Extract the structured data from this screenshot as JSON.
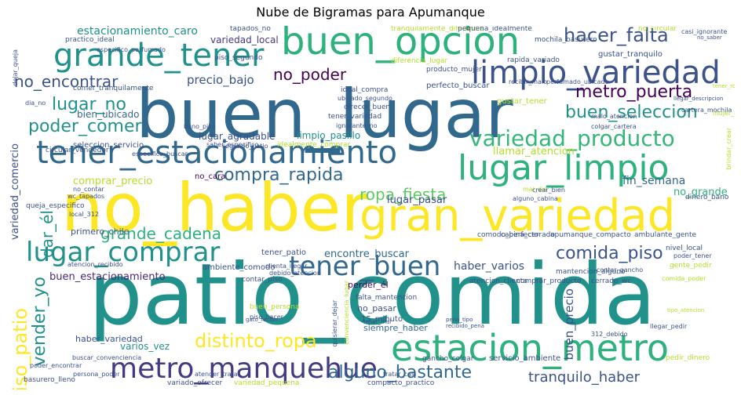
{
  "title": "Nube de Bigramas para Apumanque",
  "words": [
    {
      "text": "patio_comida",
      "color": "#21918c"
    },
    {
      "text": "buen_lugar",
      "color": "#31688e"
    },
    {
      "text": "no_haber",
      "color": "#fde725"
    },
    {
      "text": "gran_variedad",
      "color": "#fde725"
    },
    {
      "text": "buen_opcion",
      "color": "#2db27d"
    },
    {
      "text": "tener_estacionamiento",
      "color": "#31688e"
    },
    {
      "text": "estacion_metro",
      "color": "#2db27d"
    },
    {
      "text": "lugar_limpio",
      "color": "#2db27d"
    },
    {
      "text": "limpio_variedad",
      "color": "#3b528b"
    },
    {
      "text": "grande_tener",
      "color": "#21918c"
    },
    {
      "text": "metro_manquehue",
      "color": "#443a83"
    },
    {
      "text": "tener_buen",
      "color": "#31688e"
    },
    {
      "text": "lugar_comprar",
      "color": "#21918c"
    },
    {
      "text": "variedad_producto",
      "color": "#35b779"
    },
    {
      "text": "hacer_falta",
      "color": "#3b528b"
    },
    {
      "text": "buen_seleccion",
      "color": "#21918c"
    },
    {
      "text": "compra_rapida",
      "color": "#31688e"
    },
    {
      "text": "comida_piso",
      "color": "#3b528b"
    },
    {
      "text": "distinto_ropa",
      "color": "#fde725"
    },
    {
      "text": "metro_puerta",
      "color": "#440154"
    },
    {
      "text": "alguno_bastante",
      "color": "#31688e"
    },
    {
      "text": "poder_comer",
      "color": "#21918c"
    },
    {
      "text": "lugar_no",
      "color": "#21918c"
    },
    {
      "text": "no_encontrar",
      "color": "#3b528b"
    },
    {
      "text": "no_poder",
      "color": "#440154"
    },
    {
      "text": "grande_cadena",
      "color": "#2db27d"
    },
    {
      "text": "ropa_fiesta",
      "color": "#5ec962"
    },
    {
      "text": "tranquilo_haber",
      "color": "#3b528b"
    },
    {
      "text": "estacionamiento_caro",
      "color": "#21918c"
    },
    {
      "text": "precio_bajo",
      "color": "#3b528b"
    },
    {
      "text": "variedad_local",
      "color": "#443a83"
    },
    {
      "text": "buen_estacionamiento",
      "color": "#482878"
    },
    {
      "text": "lugar_agradable",
      "color": "#3b528b"
    },
    {
      "text": "bien_ubicado",
      "color": "#31688e"
    },
    {
      "text": "haber_varios",
      "color": "#3b528b"
    },
    {
      "text": "llamar_atencion",
      "color": "#b5de2b"
    },
    {
      "text": "limpio_pasillo",
      "color": "#21918c"
    },
    {
      "text": "fin_semana",
      "color": "#31688e"
    },
    {
      "text": "no_grande",
      "color": "#2db27d"
    },
    {
      "text": "lugar_pasar",
      "color": "#3b528b"
    },
    {
      "text": "comprar_precio",
      "color": "#b5de2b"
    },
    {
      "text": "varios_vez",
      "color": "#21918c"
    },
    {
      "text": "vender_yo",
      "color": "#21918c"
    },
    {
      "text": "piso_patio",
      "color": "#fde725"
    },
    {
      "text": "dar_él",
      "color": "#21918c"
    },
    {
      "text": "buen_precio",
      "color": "#3b528b"
    },
    {
      "text": "variedad_comercio",
      "color": "#3b528b"
    },
    {
      "text": "encontre_buscar",
      "color": "#31688e"
    },
    {
      "text": "primero_chile",
      "color": "#3b528b"
    },
    {
      "text": "siempre_haber",
      "color": "#31688e"
    },
    {
      "text": "haber_variedad",
      "color": "#3b528b"
    },
    {
      "text": "no_pasar",
      "color": "#3b528b"
    },
    {
      "text": "perder_él",
      "color": "#440154"
    },
    {
      "text": "15_minuto",
      "color": "#3b528b"
    },
    {
      "text": "tener_patio",
      "color": "#3b528b"
    },
    {
      "text": "no_cara",
      "color": "#440154"
    },
    {
      "text": "ambiente_comodo",
      "color": "#3b528b"
    },
    {
      "text": "seleccion_servicio",
      "color": "#3b528b"
    },
    {
      "text": "gustar_tener",
      "color": "#b5de2b"
    },
    {
      "text": "tener_variedad",
      "color": "#3b528b"
    },
    {
      "text": "perfecto_buscar",
      "color": "#3b528b"
    },
    {
      "text": "producto_mujer",
      "color": "#3b528b"
    },
    {
      "text": "rapida_variado",
      "color": "#3b528b"
    },
    {
      "text": "gustar_tranquilo",
      "color": "#3b528b"
    },
    {
      "text": "mochila_basurero",
      "color": "#3b528b"
    },
    {
      "text": "tranquilamente_diferencia",
      "color": "#b5de2b"
    },
    {
      "text": "pequena_idealmente",
      "color": "#3b528b"
    },
    {
      "text": "practico_ideal",
      "color": "#3b528b"
    },
    {
      "text": "piso_segundo",
      "color": "#3b528b"
    },
    {
      "text": "tapados_no",
      "color": "#3b528b"
    },
    {
      "text": "no_circular",
      "color": "#b5de2b"
    },
    {
      "text": "casi_ignorante",
      "color": "#3b528b"
    },
    {
      "text": "cartera_mochila",
      "color": "#3b528b"
    },
    {
      "text": "colgar_cartera",
      "color": "#3b528b"
    },
    {
      "text": "mujer_contar",
      "color": "#b5de2b"
    },
    {
      "text": "especifico_buscar",
      "color": "#3b528b"
    },
    {
      "text": "circular_vendedor",
      "color": "#3b528b"
    },
    {
      "text": "comodo_perfecto",
      "color": "#3b528b"
    },
    {
      "text": "cabina_cerrado",
      "color": "#3b528b"
    },
    {
      "text": "apumanque_compacto",
      "color": "#3b528b"
    },
    {
      "text": "ambulante_gente",
      "color": "#3b528b"
    },
    {
      "text": "nivel_local",
      "color": "#3b528b"
    },
    {
      "text": "poder_tener",
      "color": "#3b528b"
    },
    {
      "text": "servicio_ambiente",
      "color": "#3b528b"
    },
    {
      "text": "gancho_colgar",
      "color": "#3b528b"
    },
    {
      "text": "pedir_dinero",
      "color": "#b5de2b"
    },
    {
      "text": "dinero_bano",
      "color": "#3b528b"
    },
    {
      "text": "comer_tranquilamente",
      "color": "#3b528b"
    },
    {
      "text": "buen_persona",
      "color": "#b5de2b"
    },
    {
      "text": "poder_encontrar",
      "color": "#3b528b"
    },
    {
      "text": "buscar_convenciencia",
      "color": "#3b528b"
    },
    {
      "text": "basurero_lleno",
      "color": "#3b528b"
    },
    {
      "text": "variado_ofrecer",
      "color": "#3b528b"
    },
    {
      "text": "variedad_pequena",
      "color": "#b5de2b"
    },
    {
      "text": "compacto_practico",
      "color": "#3b528b"
    },
    {
      "text": "contar_piso",
      "color": "#3b528b"
    },
    {
      "text": "falta_mantencion",
      "color": "#3b528b"
    },
    {
      "text": "atencion_clienta",
      "color": "#3b528b"
    },
    {
      "text": "comprar_producto",
      "color": "#3b528b"
    },
    {
      "text": "cerrado_wc",
      "color": "#3b528b"
    },
    {
      "text": "contar_gancho",
      "color": "#3b528b"
    },
    {
      "text": "mantencion_alguno",
      "color": "#3b528b"
    },
    {
      "text": "comida_poder",
      "color": "#b5de2b"
    },
    {
      "text": "gente_pedir",
      "color": "#b5de2b"
    },
    {
      "text": "atencion_recibido",
      "color": "#3b528b"
    },
    {
      "text": "wc_tapados",
      "color": "#3b528b"
    },
    {
      "text": "queja_especifico",
      "color": "#3b528b"
    },
    {
      "text": "no_contar",
      "color": "#3b528b"
    },
    {
      "text": "ideal_compra",
      "color": "#3b528b"
    },
    {
      "text": "ofrecer_buen",
      "color": "#3b528b"
    },
    {
      "text": "ubicado_segundo",
      "color": "#3b528b"
    },
    {
      "text": "segundo_patio",
      "color": "#3b528b"
    },
    {
      "text": "idealmente_comprar",
      "color": "#b5de2b"
    },
    {
      "text": "saber_especifico",
      "color": "#3b528b"
    },
    {
      "text": "especifico_perfumado",
      "color": "#3b528b"
    },
    {
      "text": "diferencia_lugar",
      "color": "#b5de2b"
    },
    {
      "text": "recibir_malo",
      "color": "#3b528b"
    },
    {
      "text": "perfumado_ubicado",
      "color": "#3b528b"
    },
    {
      "text": "malo_atencion",
      "color": "#3b528b"
    },
    {
      "text": "ignorante_no",
      "color": "#3b528b"
    },
    {
      "text": "bano_piso",
      "color": "#3b528b"
    },
    {
      "text": "dia_no",
      "color": "#3b528b"
    },
    {
      "text": "alguno_cabina",
      "color": "#3b528b"
    },
    {
      "text": "mal_dia",
      "color": "#b5de2b"
    },
    {
      "text": "crear_bien",
      "color": "#3b528b"
    },
    {
      "text": "local_312",
      "color": "#3b528b"
    },
    {
      "text": "debido_atencion",
      "color": "#3b528b"
    },
    {
      "text": "clienta_llegar",
      "color": "#3b528b"
    },
    {
      "text": "piso_hacer",
      "color": "#3b528b"
    },
    {
      "text": "quisierar_dejar",
      "color": "#3b528b"
    },
    {
      "text": "convenciencia_lugar",
      "color": "#b5de2b"
    },
    {
      "text": "gato_recibir",
      "color": "#3b528b"
    },
    {
      "text": "tener_mal",
      "color": "#3b528b"
    },
    {
      "text": "atender_tratar",
      "color": "#3b528b"
    },
    {
      "text": "tratar_casi",
      "color": "#3b528b"
    },
    {
      "text": "persona_poder",
      "color": "#3b528b"
    },
    {
      "text": "dejar_queja",
      "color": "#3b528b"
    },
    {
      "text": "brindar_crear",
      "color": "#b5de2b"
    },
    {
      "text": "llegar_pedir",
      "color": "#3b528b"
    },
    {
      "text": "pena_tipo",
      "color": "#3b528b"
    },
    {
      "text": "312_debido",
      "color": "#3b528b"
    },
    {
      "text": "no_saber",
      "color": "#3b528b"
    },
    {
      "text": "tipo_atencion",
      "color": "#b5de2b"
    },
    {
      "text": "tener_ropa",
      "color": "#b5de2b"
    },
    {
      "text": "recibido_pena",
      "color": "#3b528b"
    },
    {
      "text": "llegar_descripcion",
      "color": "#3b528b"
    }
  ]
}
